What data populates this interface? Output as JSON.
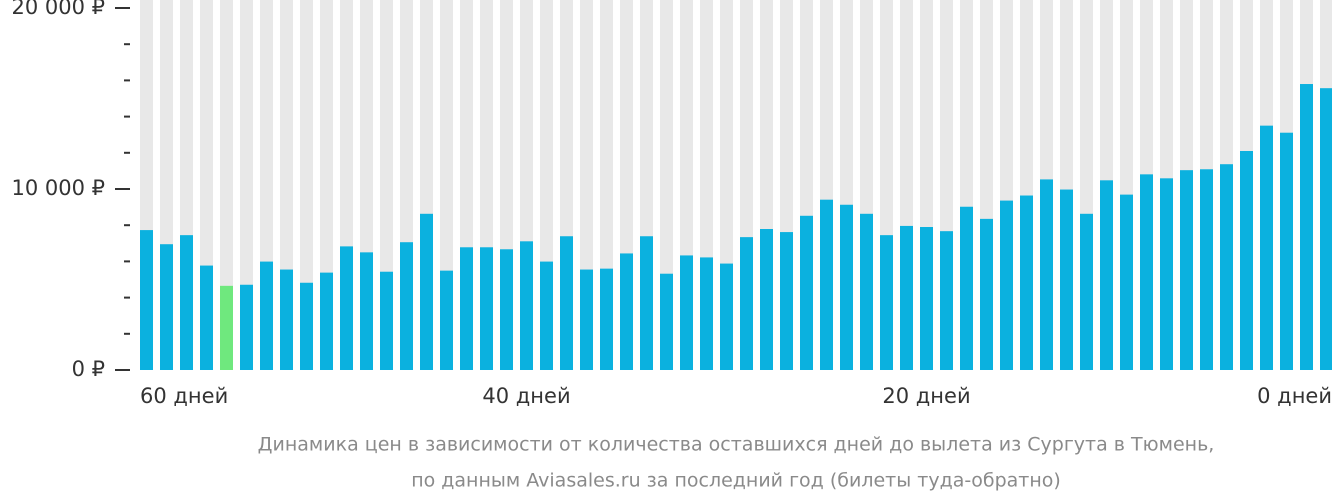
{
  "chart_data": {
    "type": "bar",
    "categories": [
      "60 дней",
      null,
      null,
      null,
      null,
      null,
      null,
      null,
      null,
      null,
      null,
      null,
      null,
      null,
      null,
      null,
      null,
      null,
      null,
      "40 дней",
      null,
      null,
      null,
      null,
      null,
      null,
      null,
      null,
      null,
      null,
      null,
      null,
      null,
      null,
      null,
      null,
      null,
      null,
      null,
      "20 дней",
      null,
      null,
      null,
      null,
      null,
      null,
      null,
      null,
      null,
      null,
      null,
      null,
      null,
      null,
      null,
      null,
      null,
      null,
      null,
      "0 дней"
    ],
    "values": [
      7730,
      6950,
      7450,
      5770,
      4650,
      4710,
      5990,
      5550,
      4820,
      5380,
      6830,
      6500,
      5430,
      7060,
      8630,
      5490,
      6780,
      6780,
      6670,
      7110,
      5990,
      7390,
      5550,
      5600,
      6440,
      7390,
      5320,
      6330,
      6220,
      5880,
      7340,
      7790,
      7620,
      8520,
      9410,
      9130,
      8630,
      7450,
      7960,
      7900,
      7670,
      9020,
      8350,
      9360,
      9640,
      10530,
      9970,
      8630,
      10480,
      9690,
      10810,
      10590,
      11040,
      11090,
      11370,
      12100,
      13500,
      13110,
      15800,
      15570
    ],
    "color": "#0bb1df",
    "highlight_index": 4,
    "highlight_color": "#6fe87e",
    "background_color": "#e8e8e8",
    "ylim": [
      0,
      20000
    ],
    "yticks": [
      {
        "value": 0,
        "label": "0 ₽"
      },
      {
        "value": 10000,
        "label": "10 000 ₽"
      },
      {
        "value": 20000,
        "label": "20 000 ₽"
      }
    ],
    "yticks_minor": [
      2000,
      4000,
      6000,
      8000,
      12000,
      14000,
      16000,
      18000
    ],
    "caption": [
      "Динамика цен в зависимости от количества оставшихся дней до вылета из Сургута в Тюмень,",
      "по данным Aviasales.ru за последний год (билеты туда-обратно)"
    ]
  }
}
